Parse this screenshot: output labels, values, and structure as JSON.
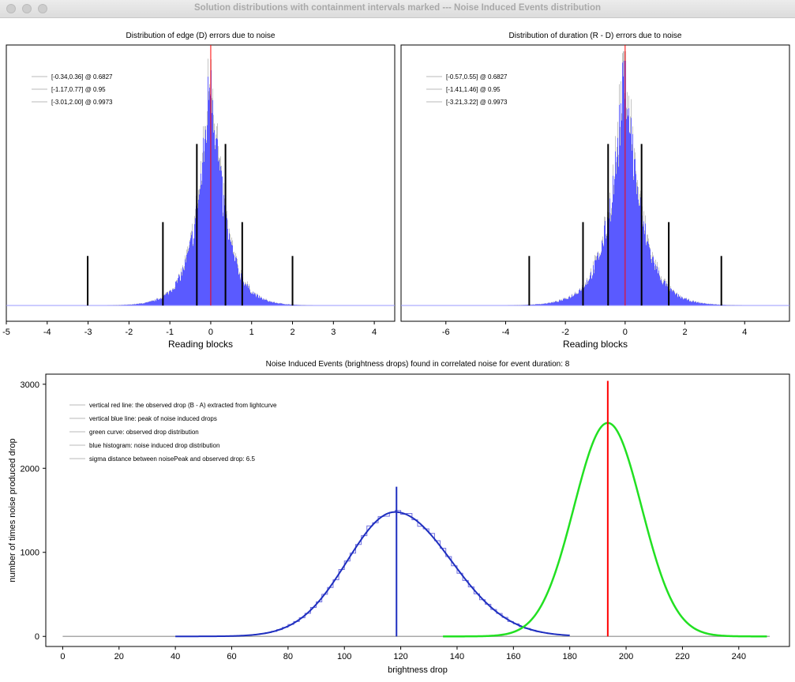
{
  "window": {
    "title": "Solution distributions with containment intervals marked --- Noise Induced Events distribution"
  },
  "colors": {
    "histogram_blue": "#5a5aff",
    "red_line": "#ff0000",
    "noise_blue": "#1f2fbf",
    "green_curve": "#22e022",
    "legend_line": "#b8b8b8"
  },
  "chart_data": [
    {
      "type": "histogram",
      "title": "Distribution of edge (D) errors due to noise",
      "xlabel": "Reading blocks",
      "ylabel": "",
      "xlim": [
        -5,
        4.5
      ],
      "xticks": [
        "-5",
        "-4",
        "-3",
        "-2",
        "-1",
        "0",
        "1",
        "2",
        "3",
        "4"
      ],
      "center": 0,
      "sigma": 0.35,
      "red_line_x": 0,
      "legend": [
        "[-0.34,0.36] @ 0.6827",
        "[-1.17,0.77] @ 0.95",
        "[-3.01,2.00] @ 0.9973"
      ],
      "intervals": [
        {
          "low": -0.34,
          "high": 0.36,
          "confidence": 0.6827,
          "marker_height": 0.62
        },
        {
          "low": -1.17,
          "high": 0.77,
          "confidence": 0.95,
          "marker_height": 0.32
        },
        {
          "low": -3.01,
          "high": 2.0,
          "confidence": 0.9973,
          "marker_height": 0.19
        }
      ]
    },
    {
      "type": "histogram",
      "title": "Distribution of duration (R - D) errors due to noise",
      "xlabel": "Reading blocks",
      "ylabel": "",
      "xlim": [
        -7.5,
        5.5
      ],
      "xticks": [
        "-6",
        "-4",
        "-2",
        "0",
        "2",
        "4"
      ],
      "center": 0,
      "sigma": 0.55,
      "red_line_x": 0,
      "legend": [
        "[-0.57,0.55] @ 0.6827",
        "[-1.41,1.46] @ 0.95",
        "[-3.21,3.22] @ 0.9973"
      ],
      "intervals": [
        {
          "low": -0.57,
          "high": 0.55,
          "confidence": 0.6827,
          "marker_height": 0.62
        },
        {
          "low": -1.41,
          "high": 1.46,
          "confidence": 0.95,
          "marker_height": 0.32
        },
        {
          "low": -3.21,
          "high": 3.22,
          "confidence": 0.9973,
          "marker_height": 0.19
        }
      ]
    },
    {
      "type": "line",
      "title": "Noise Induced Events (brightness drops) found in correlated noise for event duration: 8",
      "xlabel": "brightness drop",
      "ylabel": "number of times noise produced drop",
      "xlim": [
        -6,
        258
      ],
      "ylim": [
        -120,
        3120
      ],
      "xticks": [
        0,
        20,
        40,
        60,
        80,
        100,
        120,
        140,
        160,
        180,
        200,
        220,
        240
      ],
      "yticks": [
        0,
        1000,
        2000,
        3000
      ],
      "legend": [
        "vertical red line: the observed drop (B - A) extracted from lightcurve",
        "vertical blue line: peak of noise induced drops",
        "green curve: observed drop distribution",
        "blue histogram: noise induced drop distribution",
        "sigma distance between noisePeak and observed drop: 6.5"
      ],
      "observed_drop": 193.5,
      "noise_peak": 118.5,
      "series": [
        {
          "role": "noise",
          "peak_x": 118,
          "peak_y": 1480,
          "sigma_left": 17,
          "sigma_right": 20
        },
        {
          "role": "observed",
          "peak_x": 193.5,
          "peak_y": 2540,
          "sigma": 12
        }
      ],
      "red_line_top": 3040,
      "blue_line_top": 1780,
      "baseline_x": [
        0,
        251
      ]
    }
  ]
}
